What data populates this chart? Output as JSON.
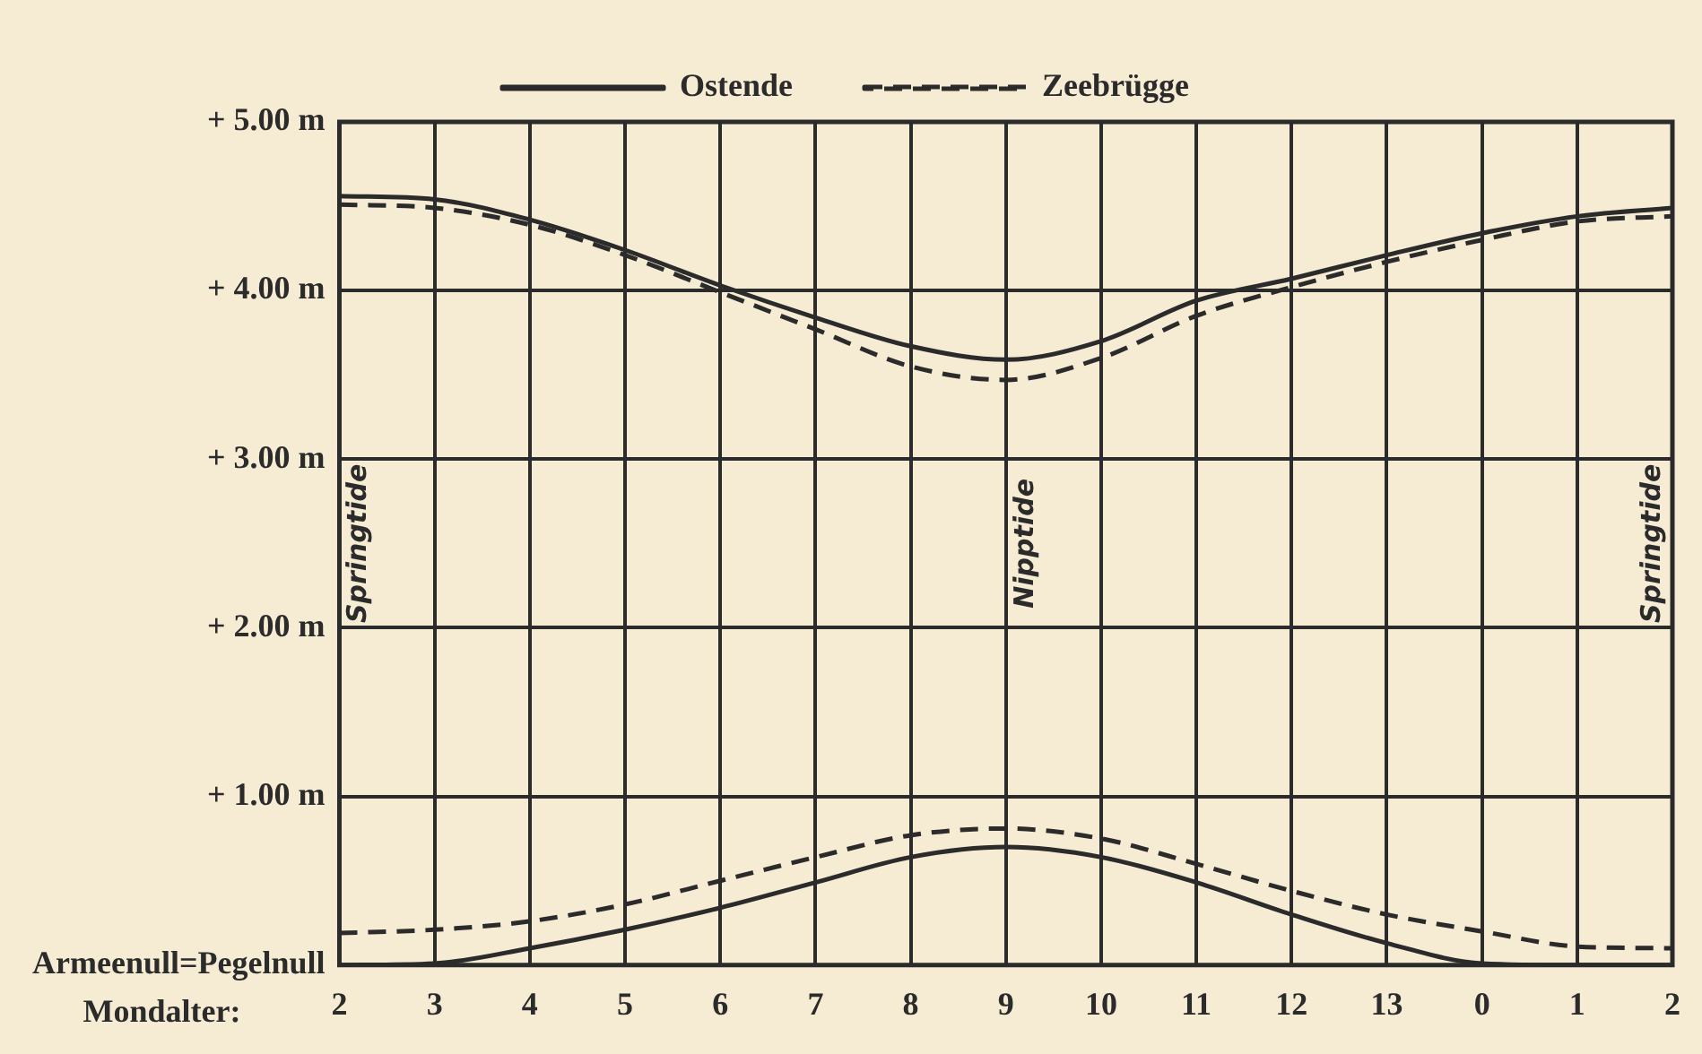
{
  "chart_data": {
    "type": "line",
    "xlabel": "Mondalter:",
    "categories": [
      "2",
      "3",
      "4",
      "5",
      "6",
      "7",
      "8",
      "9",
      "10",
      "11",
      "12",
      "13",
      "0",
      "1",
      "2"
    ],
    "series": [
      {
        "name": "Ostende",
        "color": "#2b2b2b",
        "line_style": "solid",
        "values": [
          4.56,
          4.54,
          4.42,
          4.24,
          4.03,
          3.84,
          3.67,
          3.59,
          3.7,
          3.94,
          4.07,
          4.21,
          4.34,
          4.44,
          4.49
        ]
      },
      {
        "name": "Zeebrügge",
        "color": "#2b2b2b",
        "line_style": "dashed",
        "values": [
          4.51,
          4.49,
          4.39,
          4.21,
          3.99,
          3.77,
          3.55,
          3.47,
          3.6,
          3.85,
          4.02,
          4.17,
          4.3,
          4.41,
          4.44
        ]
      },
      {
        "color": "#2b2b2b",
        "line_style": "solid",
        "values": [
          0,
          0.01,
          0.1,
          0.21,
          0.34,
          0.49,
          0.64,
          0.7,
          0.64,
          0.49,
          0.3,
          0.13,
          0.01,
          0,
          0
        ]
      },
      {
        "color": "#2b2b2b",
        "line_style": "dashed",
        "values": [
          0.19,
          0.21,
          0.26,
          0.36,
          0.5,
          0.64,
          0.77,
          0.81,
          0.75,
          0.6,
          0.44,
          0.3,
          0.2,
          0.11,
          0.1
        ]
      }
    ],
    "ylim": [
      0,
      5
    ],
    "yticks": [
      {
        "value": 0,
        "label": "Armeenull=Pegelnull"
      },
      {
        "value": 1,
        "label": "+ 1.00 m"
      },
      {
        "value": 2,
        "label": "+ 2.00 m"
      },
      {
        "value": 3,
        "label": "+ 3.00 m"
      },
      {
        "value": 4,
        "label": "+ 4.00 m"
      },
      {
        "value": 5,
        "label": "+ 5.00 m"
      }
    ],
    "annotations": [
      "Springtide",
      "Nipptide",
      "Springtide"
    ],
    "grid": true,
    "legend": "top",
    "marker": "none"
  }
}
